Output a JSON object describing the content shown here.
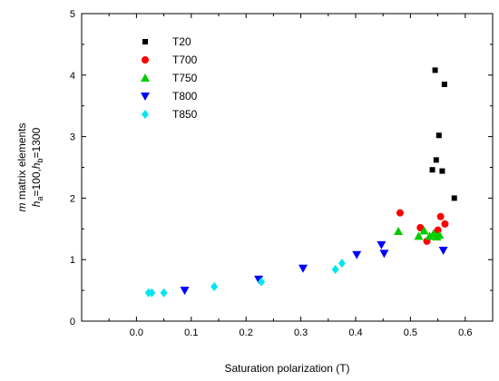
{
  "chart_data": {
    "type": "scatter",
    "xlabel": "Saturation polarization  (T)",
    "ylabel_line1": "m matrix elements",
    "ylabel_line2": "h_a=100,h_b=1300",
    "xlim": [
      -0.1,
      0.65
    ],
    "ylim": [
      0,
      5
    ],
    "xticks": [
      0.0,
      0.1,
      0.2,
      0.3,
      0.4,
      0.5,
      0.6
    ],
    "xtick_labels": [
      "0.0",
      "0.1",
      "0.2",
      "0.3",
      "0.4",
      "0.5",
      "0.6"
    ],
    "yticks": [
      0,
      1,
      2,
      3,
      4,
      5
    ],
    "ytick_labels": [
      "0",
      "1",
      "2",
      "3",
      "4",
      "5"
    ],
    "grid": false,
    "legend_position": "top-left",
    "series": [
      {
        "name": "T20",
        "marker": "square",
        "color": "#000000",
        "points": [
          [
            0.545,
            4.08
          ],
          [
            0.562,
            3.85
          ],
          [
            0.552,
            3.02
          ],
          [
            0.547,
            2.62
          ],
          [
            0.54,
            2.46
          ],
          [
            0.558,
            2.44
          ],
          [
            0.58,
            2.0
          ]
        ]
      },
      {
        "name": "T700",
        "marker": "circle",
        "color": "#ff0000",
        "points": [
          [
            0.481,
            1.76
          ],
          [
            0.518,
            1.52
          ],
          [
            0.555,
            1.7
          ],
          [
            0.563,
            1.58
          ],
          [
            0.55,
            1.48
          ],
          [
            0.53,
            1.3
          ]
        ]
      },
      {
        "name": "T750",
        "marker": "triangle-up",
        "color": "#00cc00",
        "points": [
          [
            0.478,
            1.46
          ],
          [
            0.515,
            1.38
          ],
          [
            0.525,
            1.47
          ],
          [
            0.535,
            1.38
          ],
          [
            0.542,
            1.42
          ],
          [
            0.548,
            1.37
          ],
          [
            0.553,
            1.4
          ]
        ]
      },
      {
        "name": "T800",
        "marker": "triangle-down",
        "color": "#0000ff",
        "points": [
          [
            0.088,
            0.5
          ],
          [
            0.223,
            0.68
          ],
          [
            0.304,
            0.86
          ],
          [
            0.402,
            1.08
          ],
          [
            0.447,
            1.24
          ],
          [
            0.452,
            1.1
          ],
          [
            0.56,
            1.15
          ]
        ]
      },
      {
        "name": "T850",
        "marker": "diamond",
        "color": "#00e5ee",
        "points": [
          [
            0.022,
            0.46
          ],
          [
            0.028,
            0.46
          ],
          [
            0.05,
            0.46
          ],
          [
            0.142,
            0.56
          ],
          [
            0.228,
            0.64
          ],
          [
            0.363,
            0.84
          ],
          [
            0.375,
            0.94
          ]
        ]
      }
    ]
  }
}
